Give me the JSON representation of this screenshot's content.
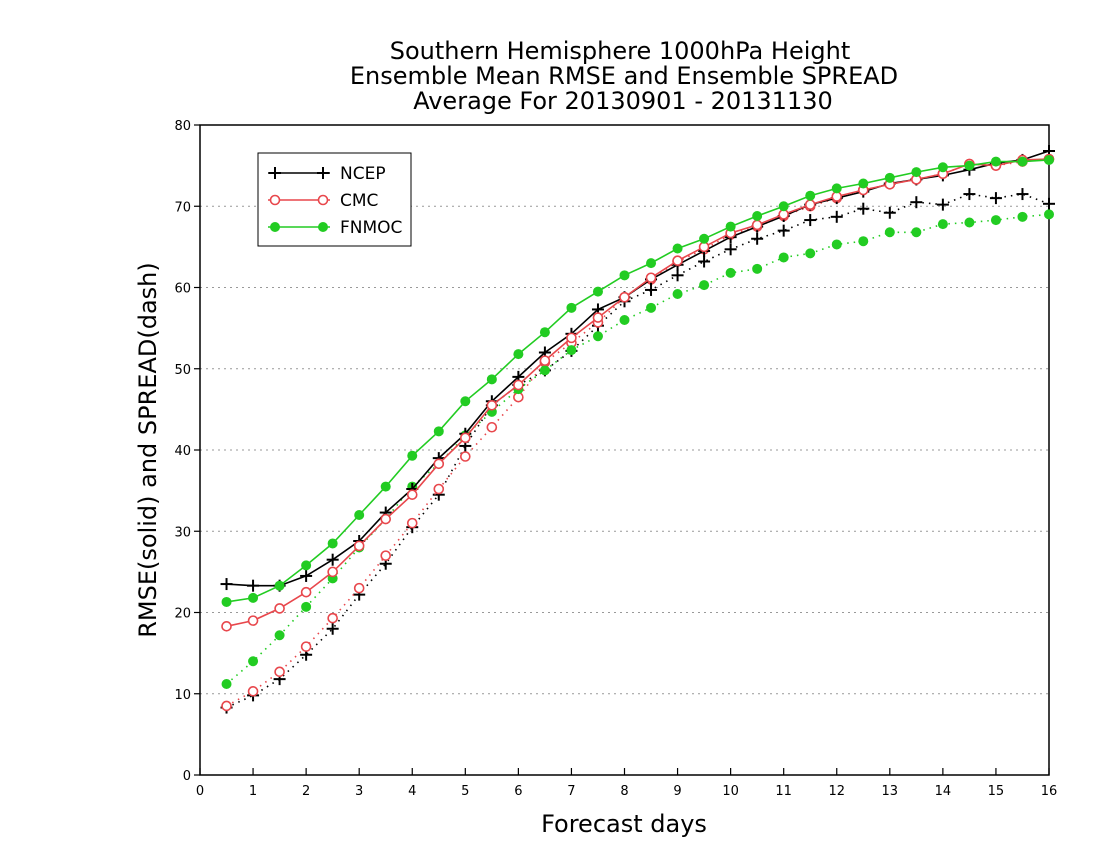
{
  "chart_data": {
    "type": "line",
    "title_lines": [
      "Southern Hemisphere 1000hPa Height",
      "Ensemble Mean RMSE and Ensemble SPREAD",
      "Average For 20130901 - 20131130"
    ],
    "xlabel": "Forecast days",
    "ylabel": "RMSE(solid) and SPREAD(dash)",
    "xlim": [
      0,
      16
    ],
    "ylim": [
      0,
      80
    ],
    "x_ticks": [
      0,
      1,
      2,
      3,
      4,
      5,
      6,
      7,
      8,
      9,
      10,
      11,
      12,
      13,
      14,
      15,
      16
    ],
    "y_ticks": [
      0,
      10,
      20,
      30,
      40,
      50,
      60,
      70,
      80
    ],
    "grid": "horizontal dotted",
    "legend_position": "top-left",
    "x": [
      0.5,
      1,
      1.5,
      2,
      2.5,
      3,
      3.5,
      4,
      4.5,
      5,
      5.5,
      6,
      6.5,
      7,
      7.5,
      8,
      8.5,
      9,
      9.5,
      10,
      10.5,
      11,
      11.5,
      12,
      12.5,
      13,
      13.5,
      14,
      14.5,
      15,
      15.5,
      16
    ],
    "series": [
      {
        "name": "NCEP",
        "color": "#000000",
        "marker": "plus",
        "rmse": [
          23.5,
          23.3,
          23.3,
          24.5,
          26.5,
          28.8,
          32.3,
          35.2,
          39.0,
          42.0,
          46.0,
          49.0,
          52.0,
          54.3,
          57.3,
          58.8,
          61.0,
          62.8,
          64.5,
          66.2,
          67.5,
          68.8,
          70.2,
          71.0,
          71.8,
          72.8,
          73.3,
          73.8,
          74.5,
          75.3,
          75.7,
          76.8
        ],
        "spread": [
          8.3,
          9.8,
          11.8,
          14.8,
          18.0,
          22.2,
          26.0,
          30.5,
          34.5,
          40.5,
          45.5,
          48.0,
          49.8,
          52.2,
          55.3,
          58.3,
          59.7,
          61.5,
          63.2,
          64.7,
          66.0,
          67.0,
          68.3,
          68.7,
          69.7,
          69.2,
          70.5,
          70.2,
          71.5,
          71.0,
          71.5,
          70.3
        ]
      },
      {
        "name": "CMC",
        "color": "#e8474c",
        "marker": "open-circle",
        "rmse": [
          18.3,
          19.0,
          20.5,
          22.5,
          25.0,
          28.2,
          31.5,
          34.5,
          38.3,
          41.5,
          45.5,
          48.0,
          51.0,
          53.8,
          56.3,
          58.8,
          61.2,
          63.3,
          65.0,
          66.7,
          67.7,
          69.0,
          70.2,
          71.2,
          72.0,
          72.7,
          73.3,
          74.0,
          75.2,
          75.0,
          75.7,
          75.8
        ],
        "spread": [
          8.5,
          10.3,
          12.7,
          15.8,
          19.3,
          23.0,
          27.0,
          31.0,
          35.2,
          39.2,
          42.8,
          46.5,
          50.8,
          53.2,
          55.7,
          58.8,
          61.0,
          63.2,
          64.7,
          66.5,
          67.5,
          68.8,
          70.0,
          71.0,
          72.0,
          72.7,
          73.3,
          74.0,
          75.2,
          75.0,
          75.5,
          75.8
        ]
      },
      {
        "name": "FNMOC",
        "color": "#22cc22",
        "marker": "filled-circle",
        "rmse": [
          21.3,
          21.8,
          23.3,
          25.8,
          28.5,
          32.0,
          35.5,
          39.3,
          42.3,
          46.0,
          48.7,
          51.8,
          54.5,
          57.5,
          59.5,
          61.5,
          63.0,
          64.8,
          66.0,
          67.5,
          68.8,
          70.0,
          71.3,
          72.2,
          72.8,
          73.5,
          74.2,
          74.8,
          75.0,
          75.5,
          75.5,
          75.7
        ],
        "spread": [
          11.2,
          14.0,
          17.2,
          20.7,
          24.2,
          28.0,
          31.5,
          35.5,
          38.3,
          41.8,
          44.7,
          47.5,
          49.8,
          52.3,
          54.0,
          56.0,
          57.5,
          59.2,
          60.3,
          61.8,
          62.3,
          63.7,
          64.2,
          65.3,
          65.7,
          66.8,
          66.8,
          67.8,
          68.0,
          68.3,
          68.7,
          69.0
        ]
      }
    ]
  }
}
